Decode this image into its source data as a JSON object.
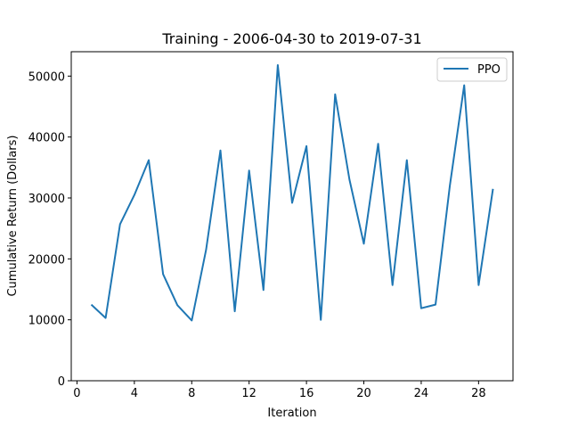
{
  "chart_data": {
    "type": "line",
    "title": "Training - 2006-04-30 to 2019-07-31",
    "xlabel": "Iteration",
    "ylabel": "Cumulative Return (Dollars)",
    "xlim": [
      -0.4,
      30.4
    ],
    "ylim": [
      0,
      54000
    ],
    "xticks": [
      0,
      4,
      8,
      12,
      16,
      20,
      24,
      28
    ],
    "yticks": [
      0,
      10000,
      20000,
      30000,
      40000,
      50000
    ],
    "grid": false,
    "legend_position": "upper right",
    "series": [
      {
        "name": "PPO",
        "color": "#1f77b4",
        "x": [
          1,
          2,
          3,
          4,
          5,
          6,
          7,
          8,
          9,
          10,
          11,
          12,
          13,
          14,
          15,
          16,
          17,
          18,
          19,
          20,
          21,
          22,
          23,
          24,
          25,
          26,
          27,
          28,
          29
        ],
        "y": [
          12500,
          10300,
          25700,
          30500,
          36200,
          17500,
          12400,
          9900,
          21500,
          37800,
          11400,
          34500,
          14900,
          51800,
          29200,
          38500,
          10000,
          47000,
          33000,
          22500,
          38900,
          15700,
          36200,
          11900,
          12500,
          32000,
          48500,
          15700,
          31500
        ]
      }
    ]
  }
}
